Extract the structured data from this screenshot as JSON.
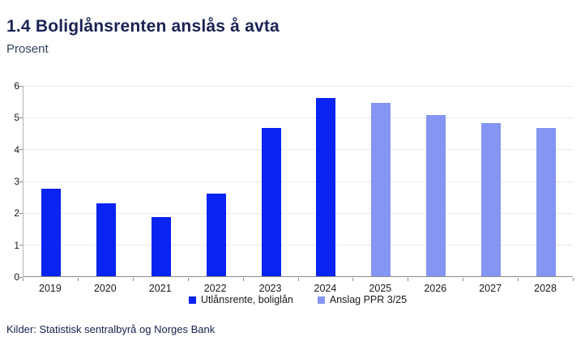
{
  "header": {
    "title": "1.4 Boliglånsrenten anslås å avta",
    "subtitle": "Prosent"
  },
  "footer": {
    "source": "Kilder: Statistisk sentralbyrå og Norges Bank"
  },
  "colors": {
    "actual": "#0823f2",
    "forecast": "#8495f4",
    "grid": "#e9e9e9",
    "axis": "#8c8c8c",
    "title": "#1a2353",
    "text": "#1a1a1a"
  },
  "chart_data": {
    "type": "bar",
    "title": "1.4 Boliglånsrenten anslås å avta",
    "subtitle": "Prosent",
    "xlabel": "",
    "ylabel": "Prosent",
    "categories": [
      "2019",
      "2020",
      "2021",
      "2022",
      "2023",
      "2024",
      "2025",
      "2026",
      "2027",
      "2028"
    ],
    "series": [
      {
        "name": "Utlånsrente, boliglån",
        "color_key": "actual",
        "values": [
          2.75,
          2.3,
          1.85,
          2.6,
          4.65,
          5.6,
          null,
          null,
          null,
          null
        ]
      },
      {
        "name": "Anslag PPR 3/25",
        "color_key": "forecast",
        "values": [
          null,
          null,
          null,
          null,
          null,
          null,
          5.45,
          5.05,
          4.8,
          4.65
        ]
      }
    ],
    "ylim": [
      0,
      6
    ],
    "yticks": [
      0,
      1,
      2,
      3,
      4,
      5,
      6
    ],
    "grid": true,
    "legend_position": "bottom"
  }
}
